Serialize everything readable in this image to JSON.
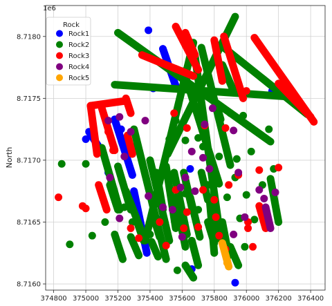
{
  "chart_data": {
    "type": "scatter",
    "ylabel": "North",
    "xlabel": "",
    "y_offset_label": "1e6",
    "xlim": [
      374750,
      376490
    ],
    "ylim": [
      8715950,
      8718250
    ],
    "x_ticks": [
      374800,
      375000,
      375200,
      375400,
      375600,
      375800,
      376000,
      376200,
      376400
    ],
    "x_tick_labels": [
      "374800",
      "375000",
      "375200",
      "375400",
      "375600",
      "375800",
      "376000",
      "376200",
      "376400"
    ],
    "y_ticks": [
      8716000,
      8716500,
      8717000,
      8717500,
      8718000
    ],
    "y_tick_labels": [
      "8.7160",
      "8.7165",
      "8.7170",
      "8.7175",
      "8.7180"
    ],
    "grid": true,
    "legend": {
      "title": "Rock",
      "placement": "top-left",
      "entries": [
        "Rock1",
        "Rock2",
        "Rock3",
        "Rock4",
        "Rock5"
      ]
    },
    "colors": {
      "Rock1": "#0000ff",
      "Rock2": "#008000",
      "Rock3": "#ff0000",
      "Rock4": "#800080",
      "Rock5": "#ffa500"
    },
    "series": [
      {
        "name": "Rock1",
        "segments": [
          [
            [
              375020,
              8717230
            ],
            [
              375110,
              8717050
            ]
          ],
          [
            [
              375180,
              8717330
            ],
            [
              375290,
              8716880
            ]
          ],
          [
            [
              375300,
              8716750
            ],
            [
              375380,
              8716250
            ]
          ],
          [
            [
              375480,
              8717900
            ],
            [
              375560,
              8717600
            ]
          ]
        ],
        "points": [
          [
            375000,
            8717170
          ],
          [
            375140,
            8716900
          ],
          [
            375220,
            8717250
          ],
          [
            375390,
            8718050
          ],
          [
            375420,
            8717580
          ],
          [
            375660,
            8716120
          ],
          [
            375930,
            8716010
          ],
          [
            376160,
            8717560
          ],
          [
            375480,
            8716540
          ],
          [
            375650,
            8716930
          ]
        ]
      },
      {
        "name": "Rock2",
        "segments": [
          [
            [
              375180,
              8717610
            ],
            [
              376300,
              8717510
            ]
          ],
          [
            [
              375200,
              8718030
            ],
            [
              376150,
              8717150
            ]
          ],
          [
            [
              375670,
              8717950
            ],
            [
              375370,
              8716350
            ]
          ],
          [
            [
              375930,
              8718160
            ],
            [
              375510,
              8717050
            ]
          ],
          [
            [
              375680,
              8717840
            ],
            [
              375840,
              8716360
            ]
          ],
          [
            [
              375720,
              8717910
            ],
            [
              375900,
              8716960
            ]
          ],
          [
            [
              375850,
              8717920
            ],
            [
              376380,
              8717370
            ]
          ],
          [
            [
              375850,
              8717770
            ],
            [
              375920,
              8717560
            ]
          ],
          [
            [
              375610,
              8717720
            ],
            [
              375830,
              8716810
            ]
          ],
          [
            [
              375300,
              8717250
            ],
            [
              375500,
              8716200
            ]
          ],
          [
            [
              375100,
              8717100
            ],
            [
              375210,
              8716600
            ]
          ],
          [
            [
              375400,
              8717000
            ],
            [
              375520,
              8716350
            ]
          ],
          [
            [
              375250,
              8716750
            ],
            [
              375340,
              8716450
            ]
          ],
          [
            [
              375550,
              8716900
            ],
            [
              375630,
              8716400
            ]
          ],
          [
            [
              375770,
              8716700
            ],
            [
              375800,
              8716250
            ]
          ],
          [
            [
              375850,
              8716500
            ],
            [
              375890,
              8716230
            ]
          ],
          [
            [
              375650,
              8716700
            ],
            [
              375710,
              8716380
            ]
          ],
          [
            [
              375720,
              8716900
            ],
            [
              375760,
              8716680
            ]
          ],
          [
            [
              375440,
              8716900
            ],
            [
              375480,
              8716600
            ]
          ],
          [
            [
              375150,
              8716800
            ],
            [
              375200,
              8716600
            ]
          ],
          [
            [
              375180,
              8716400
            ],
            [
              375230,
              8716200
            ]
          ],
          [
            [
              375660,
              8716350
            ],
            [
              375700,
              8716150
            ]
          ],
          [
            [
              375320,
              8716500
            ],
            [
              375360,
              8716350
            ]
          ],
          [
            [
              375420,
              8716550
            ],
            [
              375460,
              8716380
            ]
          ],
          [
            [
              375810,
              8717460
            ],
            [
              375840,
              8717330
            ]
          ],
          [
            [
              375200,
              8716950
            ],
            [
              375280,
              8716600
            ]
          ],
          [
            [
              375900,
              8716300
            ],
            [
              375950,
              8716150
            ]
          ],
          [
            [
              375500,
              8716950
            ],
            [
              375560,
              8716450
            ]
          ],
          [
            [
              375280,
              8716380
            ],
            [
              375330,
              8716230
            ]
          ],
          [
            [
              375560,
              8716700
            ],
            [
              375620,
              8716300
            ]
          ],
          [
            [
              375620,
              8716150
            ],
            [
              375670,
              8716050
            ]
          ],
          [
            [
              375760,
              8716500
            ],
            [
              375800,
              8716330
            ]
          ],
          [
            [
              375610,
              8716900
            ],
            [
              375660,
              8716620
            ]
          ],
          [
            [
              375410,
              8716340
            ],
            [
              375450,
              8716220
            ]
          ],
          [
            [
              376150,
              8716850
            ],
            [
              376200,
              8716500
            ]
          ]
        ],
        "points": [
          [
            374850,
            8716970
          ],
          [
            375000,
            8716970
          ],
          [
            374900,
            8716320
          ],
          [
            375120,
            8716500
          ],
          [
            375240,
            8716620
          ],
          [
            375310,
            8717110
          ],
          [
            375520,
            8717170
          ],
          [
            375560,
            8717320
          ],
          [
            375620,
            8717160
          ],
          [
            375700,
            8717180
          ],
          [
            375730,
            8717110
          ],
          [
            375760,
            8716800
          ],
          [
            375830,
            8717030
          ],
          [
            375900,
            8717380
          ],
          [
            375980,
            8717360
          ],
          [
            376030,
            8717070
          ],
          [
            376100,
            8716800
          ],
          [
            376050,
            8716520
          ],
          [
            376170,
            8716930
          ],
          [
            375990,
            8716300
          ],
          [
            375960,
            8716530
          ],
          [
            376000,
            8716720
          ],
          [
            376140,
            8717250
          ],
          [
            375040,
            8716390
          ],
          [
            375290,
            8716500
          ],
          [
            375400,
            8716400
          ],
          [
            375620,
            8716730
          ],
          [
            375700,
            8716600
          ],
          [
            375570,
            8716110
          ],
          [
            375880,
            8716700
          ],
          [
            375930,
            8716860
          ],
          [
            375940,
            8717010
          ]
        ]
      },
      {
        "name": "Rock3",
        "segments": [
          [
            [
              375030,
              8717440
            ],
            [
              375250,
              8717480
            ]
          ],
          [
            [
              375030,
              8717440
            ],
            [
              375070,
              8717050
            ]
          ],
          [
            [
              375100,
              8717420
            ],
            [
              375180,
              8717080
            ]
          ],
          [
            [
              375350,
              8717850
            ],
            [
              375670,
              8717680
            ]
          ],
          [
            [
              375560,
              8718080
            ],
            [
              375700,
              8717730
            ]
          ],
          [
            [
              375800,
              8717970
            ],
            [
              375850,
              8717640
            ]
          ],
          [
            [
              375860,
              8718000
            ],
            [
              375980,
              8717500
            ]
          ],
          [
            [
              376050,
              8717990
            ],
            [
              376420,
              8717310
            ]
          ],
          [
            [
              376200,
              8717620
            ],
            [
              376400,
              8717350
            ]
          ],
          [
            [
              375250,
              8717500
            ],
            [
              375280,
              8717380
            ]
          ],
          [
            [
              375620,
              8718030
            ],
            [
              375680,
              8717850
            ]
          ],
          [
            [
              375080,
              8716800
            ],
            [
              375130,
              8716600
            ]
          ],
          [
            [
              375260,
              8717200
            ],
            [
              375290,
              8717050
            ]
          ],
          [
            [
              376080,
              8716630
            ],
            [
              376120,
              8716450
            ]
          ]
        ],
        "points": [
          [
            374830,
            8716700
          ],
          [
            374980,
            8716630
          ],
          [
            375000,
            8716610
          ],
          [
            375140,
            8717230
          ],
          [
            375170,
            8717080
          ],
          [
            375330,
            8716370
          ],
          [
            375460,
            8716500
          ],
          [
            375630,
            8716580
          ],
          [
            375610,
            8716450
          ],
          [
            375730,
            8716760
          ],
          [
            375800,
            8716680
          ],
          [
            375810,
            8716540
          ],
          [
            375830,
            8716390
          ],
          [
            375870,
            8716280
          ],
          [
            376010,
            8716450
          ],
          [
            376080,
            8716920
          ],
          [
            376200,
            8716940
          ],
          [
            376040,
            8716300
          ],
          [
            375890,
            8716800
          ],
          [
            375700,
            8716460
          ],
          [
            375550,
            8717380
          ],
          [
            375630,
            8717260
          ],
          [
            375740,
            8717280
          ],
          [
            375870,
            8717260
          ],
          [
            376000,
            8717560
          ],
          [
            375950,
            8716880
          ],
          [
            376010,
            8716500
          ],
          [
            375560,
            8716760
          ],
          [
            375280,
            8716450
          ],
          [
            375500,
            8716310
          ]
        ]
      },
      {
        "name": "Rock4",
        "segments": [
          [
            [
              376120,
              8716620
            ],
            [
              376150,
              8716450
            ]
          ]
        ],
        "points": [
          [
            375140,
            8717320
          ],
          [
            375210,
            8717350
          ],
          [
            375280,
            8717230
          ],
          [
            375370,
            8717320
          ],
          [
            375390,
            8716710
          ],
          [
            375480,
            8716620
          ],
          [
            375590,
            8716780
          ],
          [
            375660,
            8717070
          ],
          [
            375730,
            8717020
          ],
          [
            375740,
            8717290
          ],
          [
            375790,
            8717420
          ],
          [
            375920,
            8717240
          ],
          [
            375950,
            8716900
          ],
          [
            375990,
            8716540
          ],
          [
            376080,
            8716760
          ],
          [
            376110,
            8716690
          ],
          [
            376180,
            8716740
          ],
          [
            375920,
            8716400
          ],
          [
            375680,
            8716750
          ],
          [
            375620,
            8716860
          ],
          [
            375240,
            8717030
          ],
          [
            375210,
            8716530
          ],
          [
            375150,
            8716860
          ],
          [
            375540,
            8716600
          ],
          [
            375770,
            8716930
          ],
          [
            375600,
            8716380
          ]
        ]
      },
      {
        "name": "Rock5",
        "segments": [
          [
            [
              375850,
              8716330
            ],
            [
              375890,
              8716140
            ]
          ]
        ],
        "points": [
          [
            375880,
            8716170
          ]
        ]
      }
    ]
  }
}
